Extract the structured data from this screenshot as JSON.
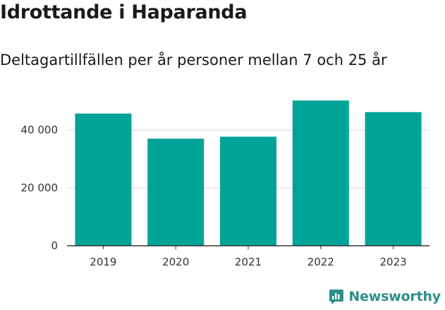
{
  "title": "Idrottande i Haparanda",
  "subtitle": "Deltagartillfällen per år personer mellan 7 och 25 år",
  "brand": {
    "name": "Newsworthy",
    "icon": "newsworthy-logo-icon",
    "color": "#2d8f88"
  },
  "colors": {
    "bar": "#00a398",
    "grid": "#d9d9d9",
    "axis": "#333333"
  },
  "chart_data": {
    "type": "bar",
    "title": "Idrottande i Haparanda",
    "subtitle": "Deltagartillfällen per år personer mellan 7 och 25 år",
    "xlabel": "",
    "ylabel": "",
    "categories": [
      "2019",
      "2020",
      "2021",
      "2022",
      "2023"
    ],
    "values": [
      45700,
      37000,
      37700,
      50200,
      46200
    ],
    "ylim": [
      0,
      52000
    ],
    "yticks": [
      0,
      20000,
      40000
    ],
    "ytick_labels": [
      "0",
      "20 000",
      "40 000"
    ],
    "grid": true
  }
}
